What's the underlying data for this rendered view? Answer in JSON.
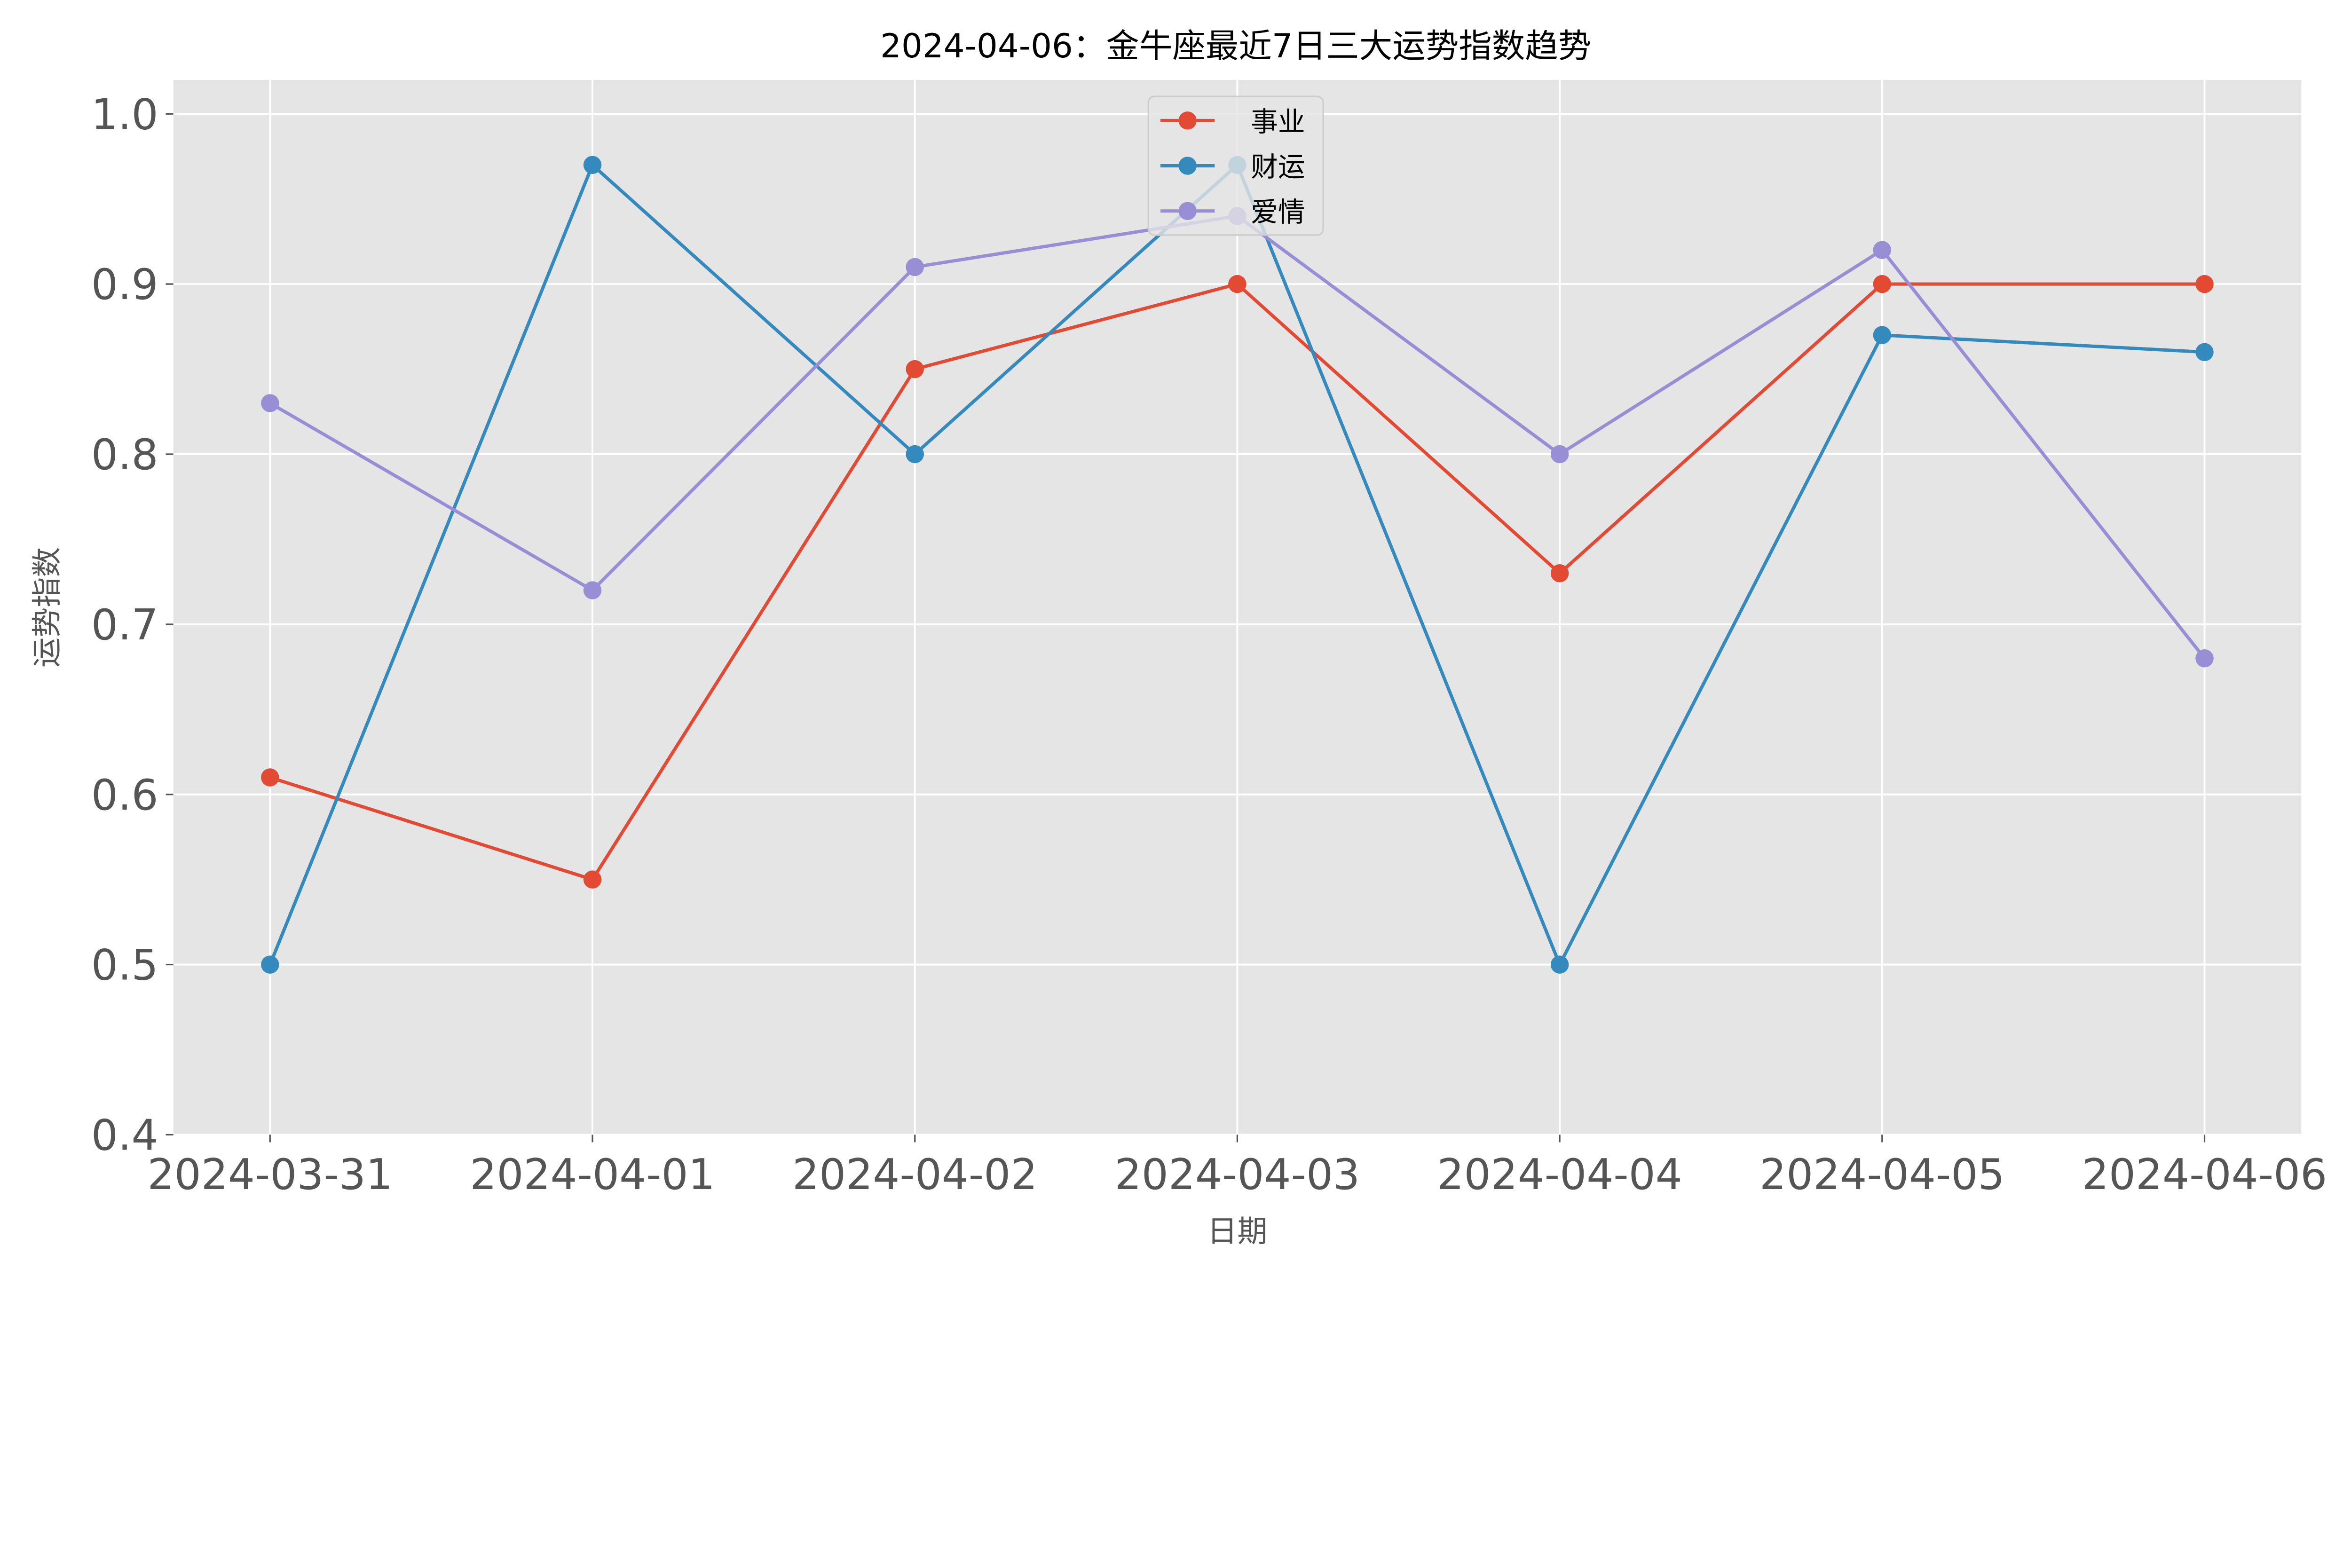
{
  "chart_data": {
    "type": "line",
    "title": "2024-04-06：金牛座最近7日三大运势指数趋势",
    "xlabel": "日期",
    "ylabel": "运势指数",
    "categories": [
      "2024-03-31",
      "2024-04-01",
      "2024-04-02",
      "2024-04-03",
      "2024-04-04",
      "2024-04-05",
      "2024-04-06"
    ],
    "ylim": [
      0.4,
      1.02
    ],
    "yticks": [
      0.4,
      0.5,
      0.6,
      0.7,
      0.8,
      0.9,
      1.0
    ],
    "ytick_labels": [
      "0.4",
      "0.5",
      "0.6",
      "0.7",
      "0.8",
      "0.9",
      "1.0"
    ],
    "grid": true,
    "background": "#e5e5e5",
    "legend_position": "top-center",
    "series": [
      {
        "name": "事业",
        "color": "#e24a33",
        "marker": "circle",
        "values": [
          0.61,
          0.55,
          0.85,
          0.9,
          0.73,
          0.9,
          0.9
        ]
      },
      {
        "name": "财运",
        "color": "#348abd",
        "marker": "circle",
        "values": [
          0.5,
          0.97,
          0.8,
          0.97,
          0.5,
          0.87,
          0.86
        ]
      },
      {
        "name": "爱情",
        "color": "#988ed5",
        "marker": "circle",
        "values": [
          0.83,
          0.72,
          0.91,
          0.94,
          0.8,
          0.92,
          0.68
        ]
      }
    ]
  }
}
